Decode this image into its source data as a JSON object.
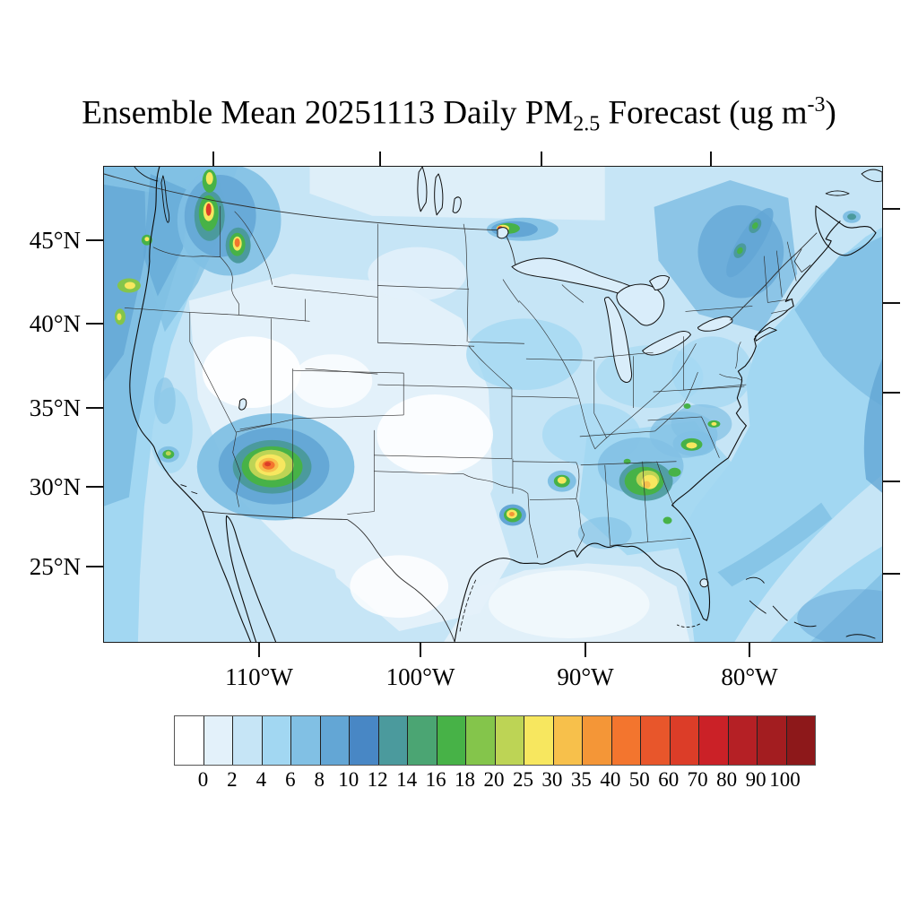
{
  "title": {
    "part1": "Ensemble Mean 20251113 Daily PM",
    "subscript": "2.5",
    "part2": " Forecast (ug m",
    "superscript": "-3",
    "part3": ")"
  },
  "map": {
    "y_ticks": [
      "45°N",
      "40°N",
      "35°N",
      "30°N",
      "25°N"
    ],
    "x_ticks": [
      "110°W",
      "100°W",
      "90°W",
      "80°W"
    ]
  },
  "colorbar": {
    "levels": [
      "0",
      "2",
      "4",
      "6",
      "8",
      "10",
      "12",
      "14",
      "16",
      "18",
      "20",
      "25",
      "30",
      "35",
      "40",
      "50",
      "60",
      "70",
      "80",
      "90",
      "100"
    ],
    "colors": [
      "#ffffff",
      "#e3f1fa",
      "#c6e5f6",
      "#a2d7f2",
      "#81c0e4",
      "#63a6d5",
      "#4887c5",
      "#4b9a9d",
      "#4ba573",
      "#47b247",
      "#84c54b",
      "#bdd455",
      "#f7e75f",
      "#f7c04b",
      "#f49637",
      "#f3752e",
      "#e8562b",
      "#dc3d28",
      "#cb2127",
      "#b52025",
      "#a31d20",
      "#8d181a"
    ]
  },
  "chart_data": {
    "type": "heatmap",
    "title": "Ensemble Mean 20251113 Daily PM2.5 Forecast (ug m-3)",
    "variable": "Daily mean PM2.5 concentration, ensemble mean forecast",
    "date": "20251113",
    "units": "ug m-3",
    "region": "Contiguous United States and surrounding waters (approx 120W-72W, 21N-49.5N), conic projection with curved parallels",
    "x_tick_labels": [
      "110°W",
      "100°W",
      "90°W",
      "80°W"
    ],
    "y_tick_labels": [
      "45°N",
      "40°N",
      "35°N",
      "30°N",
      "25°N"
    ],
    "colorbar_levels": [
      0,
      2,
      4,
      6,
      8,
      10,
      12,
      14,
      16,
      18,
      20,
      25,
      30,
      35,
      40,
      50,
      60,
      70,
      80,
      90,
      100
    ],
    "colorbar_colors": [
      "#ffffff",
      "#e3f1fa",
      "#c6e5f6",
      "#a2d7f2",
      "#81c0e4",
      "#63a6d5",
      "#4887c5",
      "#4b9a9d",
      "#4ba573",
      "#47b247",
      "#84c54b",
      "#bdd455",
      "#f7e75f",
      "#f7c04b",
      "#f49637",
      "#f3752e",
      "#e8562b",
      "#dc3d28",
      "#cb2127",
      "#b52025",
      "#a31d20",
      "#8d181a"
    ],
    "background_field": "0-4 ug/m3 over interior West, Plains and Texas; 2-8 ug/m3 over the East, Midwest, Gulf and coastal oceans; 6-10 ug/m3 along the Pacific NW coast, over the Northeast US and the western Atlantic",
    "hotspots": [
      {
        "location": "SE Arizona / SW New Mexico",
        "peak_value": "40-60",
        "description": "largest plume, concentric rings from blue to orange-red core near 32.5N 110W"
      },
      {
        "location": "North-central Washington",
        "peak_value": "60-80",
        "description": "small intense red-cored spot"
      },
      {
        "location": "Idaho panhandle / NW Montana",
        "peak_value": "50-60",
        "description": "small orange-cored spot"
      },
      {
        "location": "NW Montana / BC border valley",
        "peak_value": "25-30",
        "description": "small yellow-green spot near top edge"
      },
      {
        "location": "Minnesota-Ontario border north of Lake Superior",
        "peak_value": "60-80",
        "description": "narrow red/yellow plume trailing east, ~48N 92W"
      },
      {
        "location": "Central Georgia",
        "peak_value": "30-40",
        "description": "patchy yellow/green cluster around 32-33N 84W"
      },
      {
        "location": "West-central Louisiana near Texas border",
        "peak_value": "35-50",
        "description": "small yellow-orange spot near 30N 93.5W"
      },
      {
        "location": "Central Mississippi",
        "peak_value": "25-30",
        "description": "small yellow spot near 32.5N 90W"
      },
      {
        "location": "North Carolina / Virginia border",
        "peak_value": "25-30",
        "description": "small yellow streaks near 34-35N 79W"
      },
      {
        "location": "Oregon and northern California coast",
        "peak_value": "20-30",
        "description": "small yellow-green coastal spots"
      },
      {
        "location": "Seattle area",
        "peak_value": "25-30",
        "description": "green dot with yellow center"
      },
      {
        "location": "Los Angeles basin",
        "peak_value": "14-18",
        "description": "green dot"
      },
      {
        "location": "St. Lawrence valley (NY/Vermont/Quebec)",
        "peak_value": "14-18",
        "description": "dark blue band with green dots"
      },
      {
        "location": "Nova Scotia (Halifax)",
        "peak_value": "12-14",
        "description": "small teal dot"
      }
    ]
  }
}
